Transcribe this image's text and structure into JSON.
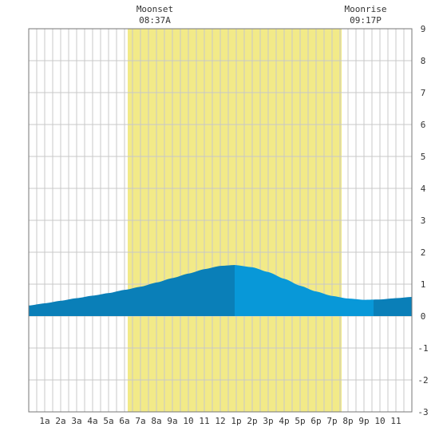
{
  "chart_data": {
    "type": "area",
    "title": "",
    "xlabel": "",
    "ylabel": "",
    "x_tick_labels": [
      "1a",
      "2a",
      "3a",
      "4a",
      "5a",
      "6a",
      "7a",
      "8a",
      "9a",
      "10",
      "11",
      "12",
      "1p",
      "2p",
      "3p",
      "4p",
      "5p",
      "6p",
      "7p",
      "8p",
      "9p",
      "10",
      "11"
    ],
    "ylim": [
      -3,
      9
    ],
    "y_ticks": [
      "-3",
      "-2",
      "-1",
      "0",
      "1",
      "2",
      "3",
      "4",
      "5",
      "6",
      "7",
      "8",
      "9"
    ],
    "grid": true,
    "daylight": {
      "start_hour": 6.2,
      "end_hour": 19.6,
      "color": "#f2ea88"
    },
    "tide": {
      "series": [
        {
          "hour": 0,
          "value": 0.33
        },
        {
          "hour": 1,
          "value": 0.4
        },
        {
          "hour": 2,
          "value": 0.48
        },
        {
          "hour": 3,
          "value": 0.56
        },
        {
          "hour": 4,
          "value": 0.64
        },
        {
          "hour": 5,
          "value": 0.72
        },
        {
          "hour": 6,
          "value": 0.82
        },
        {
          "hour": 7,
          "value": 0.92
        },
        {
          "hour": 8,
          "value": 1.05
        },
        {
          "hour": 9,
          "value": 1.19
        },
        {
          "hour": 10,
          "value": 1.33
        },
        {
          "hour": 11,
          "value": 1.47
        },
        {
          "hour": 12,
          "value": 1.57
        },
        {
          "hour": 12.9,
          "value": 1.6
        },
        {
          "hour": 14,
          "value": 1.53
        },
        {
          "hour": 15,
          "value": 1.38
        },
        {
          "hour": 16,
          "value": 1.17
        },
        {
          "hour": 17,
          "value": 0.95
        },
        {
          "hour": 18,
          "value": 0.77
        },
        {
          "hour": 19,
          "value": 0.63
        },
        {
          "hour": 20,
          "value": 0.55
        },
        {
          "hour": 21,
          "value": 0.51
        },
        {
          "hour": 22,
          "value": 0.52
        },
        {
          "hour": 23,
          "value": 0.56
        },
        {
          "hour": 24,
          "value": 0.6
        }
      ],
      "dark_color": "#0a7fb8",
      "light_color": "#0898d8",
      "light_segments": [
        [
          12.9,
          21.6
        ]
      ]
    },
    "annotations": [
      {
        "label": "Moonset",
        "time": "08:37A",
        "hour": 7.9
      },
      {
        "label": "Moonrise",
        "time": "09:17P",
        "hour": 21.1
      }
    ],
    "colors": {
      "grid": "#c8c8c8",
      "border": "#777777",
      "background": "#ffffff"
    }
  }
}
